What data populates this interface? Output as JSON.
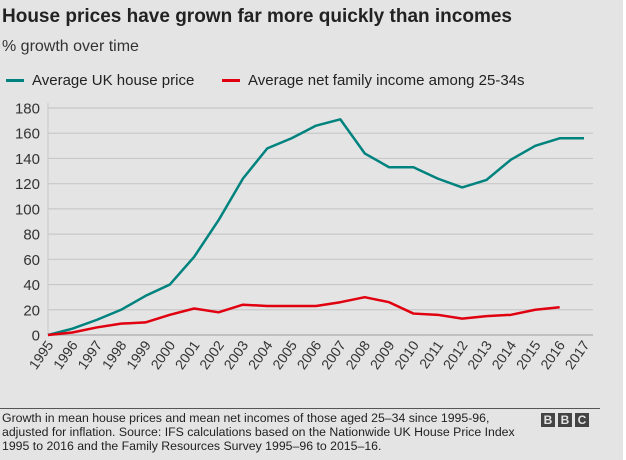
{
  "chart_data": {
    "type": "line",
    "title": "House prices have grown far more quickly than incomes",
    "subtitle": "% growth over time",
    "x": [
      1995,
      1996,
      1997,
      1998,
      1999,
      2000,
      2001,
      2002,
      2003,
      2004,
      2005,
      2006,
      2007,
      2008,
      2009,
      2010,
      2011,
      2012,
      2013,
      2014,
      2015,
      2016,
      2017
    ],
    "yticks": [
      0,
      20,
      40,
      60,
      80,
      100,
      120,
      140,
      160,
      180
    ],
    "ylim": [
      0,
      180
    ],
    "grid": true,
    "legend_placement": "top",
    "series": [
      {
        "name": "Average UK house price",
        "color": "#00837e",
        "values": [
          0,
          5,
          12,
          20,
          31,
          40,
          62,
          91,
          124,
          148,
          156,
          166,
          171,
          144,
          133,
          133,
          124,
          117,
          123,
          139,
          150,
          156,
          156
        ]
      },
      {
        "name": "Average net family income among 25-34s",
        "color": "#e1000f",
        "values": [
          0,
          2,
          6,
          9,
          10,
          16,
          21,
          18,
          24,
          23,
          23,
          23,
          26,
          30,
          26,
          17,
          16,
          13,
          15,
          16,
          20,
          22,
          null
        ]
      }
    ]
  },
  "footer": {
    "note": "Growth in mean house prices and mean net incomes of those aged 25–34 since 1995-96, adjusted for inflation. Source: IFS calculations based on the Nationwide UK House Price Index 1995 to 2016 and the Family Resources Survey 1995–96 to 2015–16.",
    "logo": "BBC"
  }
}
